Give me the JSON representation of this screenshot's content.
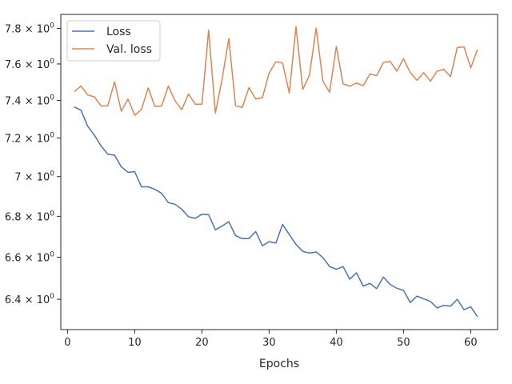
{
  "chart_data": {
    "type": "line",
    "title": "",
    "xlabel": "Epochs",
    "ylabel": "",
    "y_scale": "log",
    "grid": false,
    "legend_placement": "upper left",
    "xlim": [
      -1,
      64
    ],
    "ylim": [
      6.26,
      7.88
    ],
    "x_ticks": [
      0,
      10,
      20,
      30,
      40,
      50,
      60
    ],
    "x_tick_labels": [
      "0",
      "10",
      "20",
      "30",
      "40",
      "50",
      "60"
    ],
    "y_ticks": [
      6.4,
      6.6,
      6.8,
      7.0,
      7.2,
      7.4,
      7.6,
      7.8
    ],
    "y_tick_labels": [
      {
        "mantissa": "6.4",
        "base": "10",
        "exp": "0"
      },
      {
        "mantissa": "6.6",
        "base": "10",
        "exp": "0"
      },
      {
        "mantissa": "6.8",
        "base": "10",
        "exp": "0"
      },
      {
        "mantissa": "7",
        "base": "10",
        "exp": "0"
      },
      {
        "mantissa": "7.2",
        "base": "10",
        "exp": "0"
      },
      {
        "mantissa": "7.4",
        "base": "10",
        "exp": "0"
      },
      {
        "mantissa": "7.6",
        "base": "10",
        "exp": "0"
      },
      {
        "mantissa": "7.8",
        "base": "10",
        "exp": "0"
      }
    ],
    "x": [
      1,
      2,
      3,
      4,
      5,
      6,
      7,
      8,
      9,
      10,
      11,
      12,
      13,
      14,
      15,
      16,
      17,
      18,
      19,
      20,
      21,
      22,
      23,
      24,
      25,
      26,
      27,
      28,
      29,
      30,
      31,
      32,
      33,
      34,
      35,
      36,
      37,
      38,
      39,
      40,
      41,
      42,
      43,
      44,
      45,
      46,
      47,
      48,
      49,
      50,
      51,
      52,
      53,
      54,
      55,
      56,
      57,
      58,
      59,
      60,
      61
    ],
    "series": [
      {
        "name": "Loss",
        "color": "#4c72b0",
        "values": [
          7.365,
          7.348,
          7.262,
          7.215,
          7.158,
          7.115,
          7.11,
          7.05,
          7.022,
          7.025,
          6.948,
          6.948,
          6.935,
          6.915,
          6.868,
          6.86,
          6.835,
          6.798,
          6.79,
          6.81,
          6.808,
          6.733,
          6.752,
          6.773,
          6.705,
          6.69,
          6.69,
          6.725,
          6.655,
          6.675,
          6.668,
          6.76,
          6.71,
          6.662,
          6.628,
          6.62,
          6.625,
          6.598,
          6.555,
          6.542,
          6.555,
          6.495,
          6.525,
          6.462,
          6.475,
          6.45,
          6.505,
          6.47,
          6.452,
          6.442,
          6.385,
          6.415,
          6.402,
          6.39,
          6.36,
          6.372,
          6.368,
          6.4,
          6.352,
          6.365,
          6.32
        ]
      },
      {
        "name": "Val. loss",
        "color": "#dd8452",
        "values": [
          7.448,
          7.478,
          7.43,
          7.42,
          7.37,
          7.372,
          7.502,
          7.342,
          7.408,
          7.32,
          7.352,
          7.468,
          7.368,
          7.37,
          7.478,
          7.398,
          7.35,
          7.435,
          7.38,
          7.38,
          7.79,
          7.332,
          7.515,
          7.742,
          7.372,
          7.362,
          7.47,
          7.408,
          7.415,
          7.55,
          7.612,
          7.605,
          7.44,
          7.81,
          7.46,
          7.538,
          7.802,
          7.505,
          7.445,
          7.698,
          7.49,
          7.478,
          7.495,
          7.48,
          7.545,
          7.535,
          7.608,
          7.615,
          7.56,
          7.63,
          7.552,
          7.51,
          7.552,
          7.505,
          7.56,
          7.57,
          7.53,
          7.692,
          7.695,
          7.578,
          7.68
        ]
      }
    ]
  }
}
